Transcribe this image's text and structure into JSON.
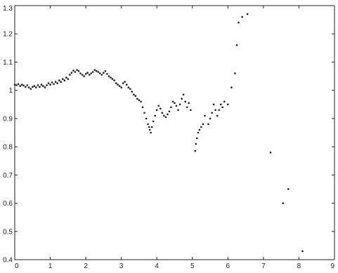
{
  "chart_data": {
    "type": "scatter",
    "xlim": [
      0,
      9
    ],
    "ylim": [
      0.4,
      1.3
    ],
    "grid": false,
    "x_ticks": [
      "0",
      "1",
      "2",
      "3",
      "4",
      "5",
      "6",
      "7",
      "8",
      "9"
    ],
    "y_ticks": [
      "0.4",
      "0.5",
      "0.6",
      "0.7",
      "0.8",
      "0.9",
      "1",
      "1.1",
      "1.2",
      "1.3"
    ],
    "marker_color": "#1a1a1a",
    "axis_color": "#222222",
    "points_x": [
      0.0,
      0.05,
      0.1,
      0.15,
      0.2,
      0.25,
      0.3,
      0.35,
      0.4,
      0.45,
      0.5,
      0.55,
      0.6,
      0.65,
      0.7,
      0.75,
      0.8,
      0.85,
      0.9,
      0.95,
      1.0,
      1.05,
      1.1,
      1.15,
      1.2,
      1.25,
      1.3,
      1.35,
      1.4,
      1.45,
      1.5,
      1.55,
      1.6,
      1.65,
      1.7,
      1.75,
      1.8,
      1.85,
      1.9,
      1.95,
      2.0,
      2.05,
      2.1,
      2.15,
      2.2,
      2.25,
      2.3,
      2.35,
      2.4,
      2.45,
      2.5,
      2.55,
      2.6,
      2.65,
      2.7,
      2.75,
      2.8,
      2.85,
      2.9,
      2.95,
      3.0,
      3.05,
      3.1,
      3.15,
      3.2,
      3.25,
      3.3,
      3.35,
      3.4,
      3.45,
      3.5,
      3.55,
      3.6,
      3.65,
      3.7,
      3.75,
      3.78,
      3.8,
      3.83,
      3.86,
      3.9,
      3.95,
      4.0,
      4.05,
      4.1,
      4.15,
      4.2,
      4.25,
      4.3,
      4.35,
      4.4,
      4.45,
      4.5,
      4.55,
      4.6,
      4.65,
      4.7,
      4.75,
      4.8,
      4.85,
      4.9,
      4.95,
      5.08,
      5.1,
      5.13,
      5.16,
      5.2,
      5.25,
      5.3,
      5.35,
      5.45,
      5.5,
      5.55,
      5.6,
      5.65,
      5.7,
      5.75,
      5.8,
      5.85,
      5.9,
      6.0,
      6.1,
      6.2,
      6.25,
      6.3,
      6.4,
      6.55,
      7.2,
      7.55,
      7.7,
      8.1
    ],
    "points_y": [
      1.02,
      1.018,
      1.022,
      1.015,
      1.02,
      1.017,
      1.012,
      1.018,
      1.01,
      1.005,
      1.012,
      1.015,
      1.01,
      1.018,
      1.012,
      1.02,
      1.015,
      1.01,
      1.018,
      1.025,
      1.02,
      1.028,
      1.022,
      1.03,
      1.025,
      1.035,
      1.03,
      1.04,
      1.035,
      1.045,
      1.04,
      1.055,
      1.062,
      1.07,
      1.065,
      1.072,
      1.068,
      1.06,
      1.055,
      1.05,
      1.058,
      1.062,
      1.055,
      1.06,
      1.065,
      1.072,
      1.068,
      1.065,
      1.06,
      1.055,
      1.062,
      1.068,
      1.058,
      1.05,
      1.045,
      1.04,
      1.035,
      1.025,
      1.02,
      1.015,
      1.01,
      1.025,
      1.03,
      1.02,
      1.01,
      1.005,
      0.995,
      0.985,
      0.98,
      0.97,
      0.965,
      0.96,
      0.94,
      0.92,
      0.9,
      0.88,
      0.87,
      0.86,
      0.85,
      0.87,
      0.89,
      0.91,
      0.93,
      0.945,
      0.935,
      0.92,
      0.91,
      0.905,
      0.915,
      0.925,
      0.94,
      0.96,
      0.955,
      0.945,
      0.93,
      0.95,
      0.97,
      0.985,
      0.96,
      0.94,
      0.955,
      0.93,
      0.785,
      0.81,
      0.83,
      0.85,
      0.86,
      0.87,
      0.88,
      0.91,
      0.88,
      0.9,
      0.92,
      0.95,
      0.93,
      0.91,
      0.93,
      0.95,
      0.94,
      0.96,
      0.95,
      1.01,
      1.06,
      1.16,
      1.24,
      1.26,
      1.27,
      0.78,
      0.6,
      0.65,
      0.43
    ]
  }
}
